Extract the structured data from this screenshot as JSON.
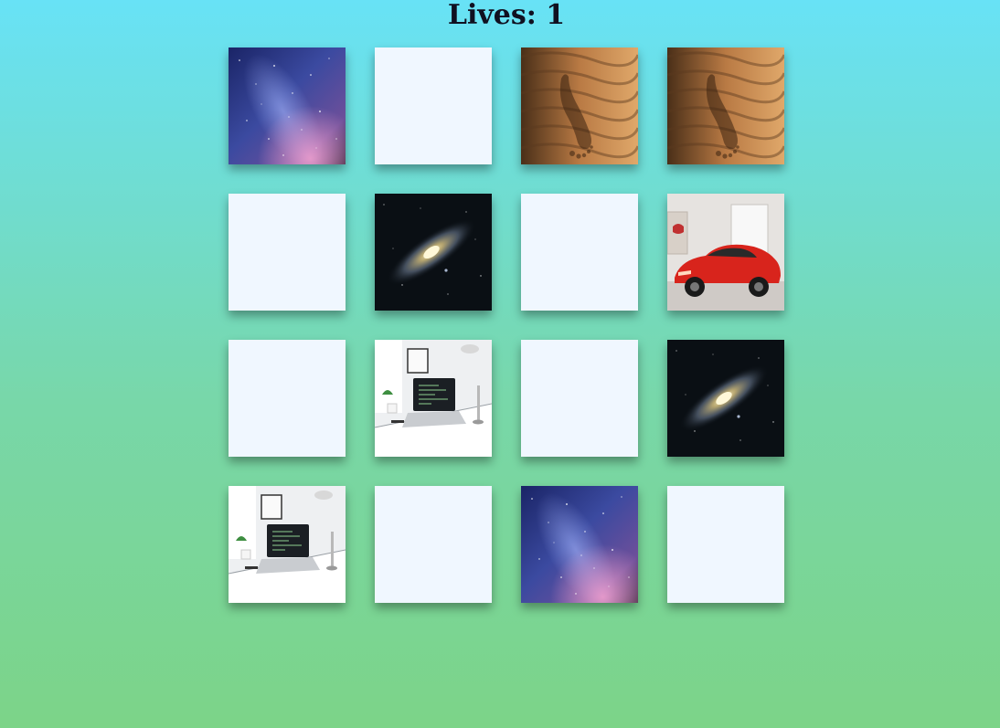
{
  "header": {
    "lives_label": "Lives:",
    "lives_value": "1"
  },
  "board": {
    "cards": [
      {
        "picture": "milky-way-image",
        "face_up": true
      },
      {
        "picture": null,
        "face_up": false
      },
      {
        "picture": "sand-footprint-image",
        "face_up": true
      },
      {
        "picture": "sand-footprint-image",
        "face_up": true
      },
      {
        "picture": null,
        "face_up": false
      },
      {
        "picture": "galaxy-image",
        "face_up": true
      },
      {
        "picture": null,
        "face_up": false
      },
      {
        "picture": "red-sports-car-image",
        "face_up": true
      },
      {
        "picture": null,
        "face_up": false
      },
      {
        "picture": "laptop-desk-image",
        "face_up": true
      },
      {
        "picture": null,
        "face_up": false
      },
      {
        "picture": "galaxy-image",
        "face_up": true
      },
      {
        "picture": "laptop-desk-image",
        "face_up": true
      },
      {
        "picture": null,
        "face_up": false
      },
      {
        "picture": "milky-way-image",
        "face_up": true
      },
      {
        "picture": null,
        "face_up": false
      }
    ]
  },
  "colors": {
    "background_top": "#68e2f6",
    "background_bottom": "#7cd488",
    "card_back": "#f0f7ff",
    "text": "#101020"
  }
}
